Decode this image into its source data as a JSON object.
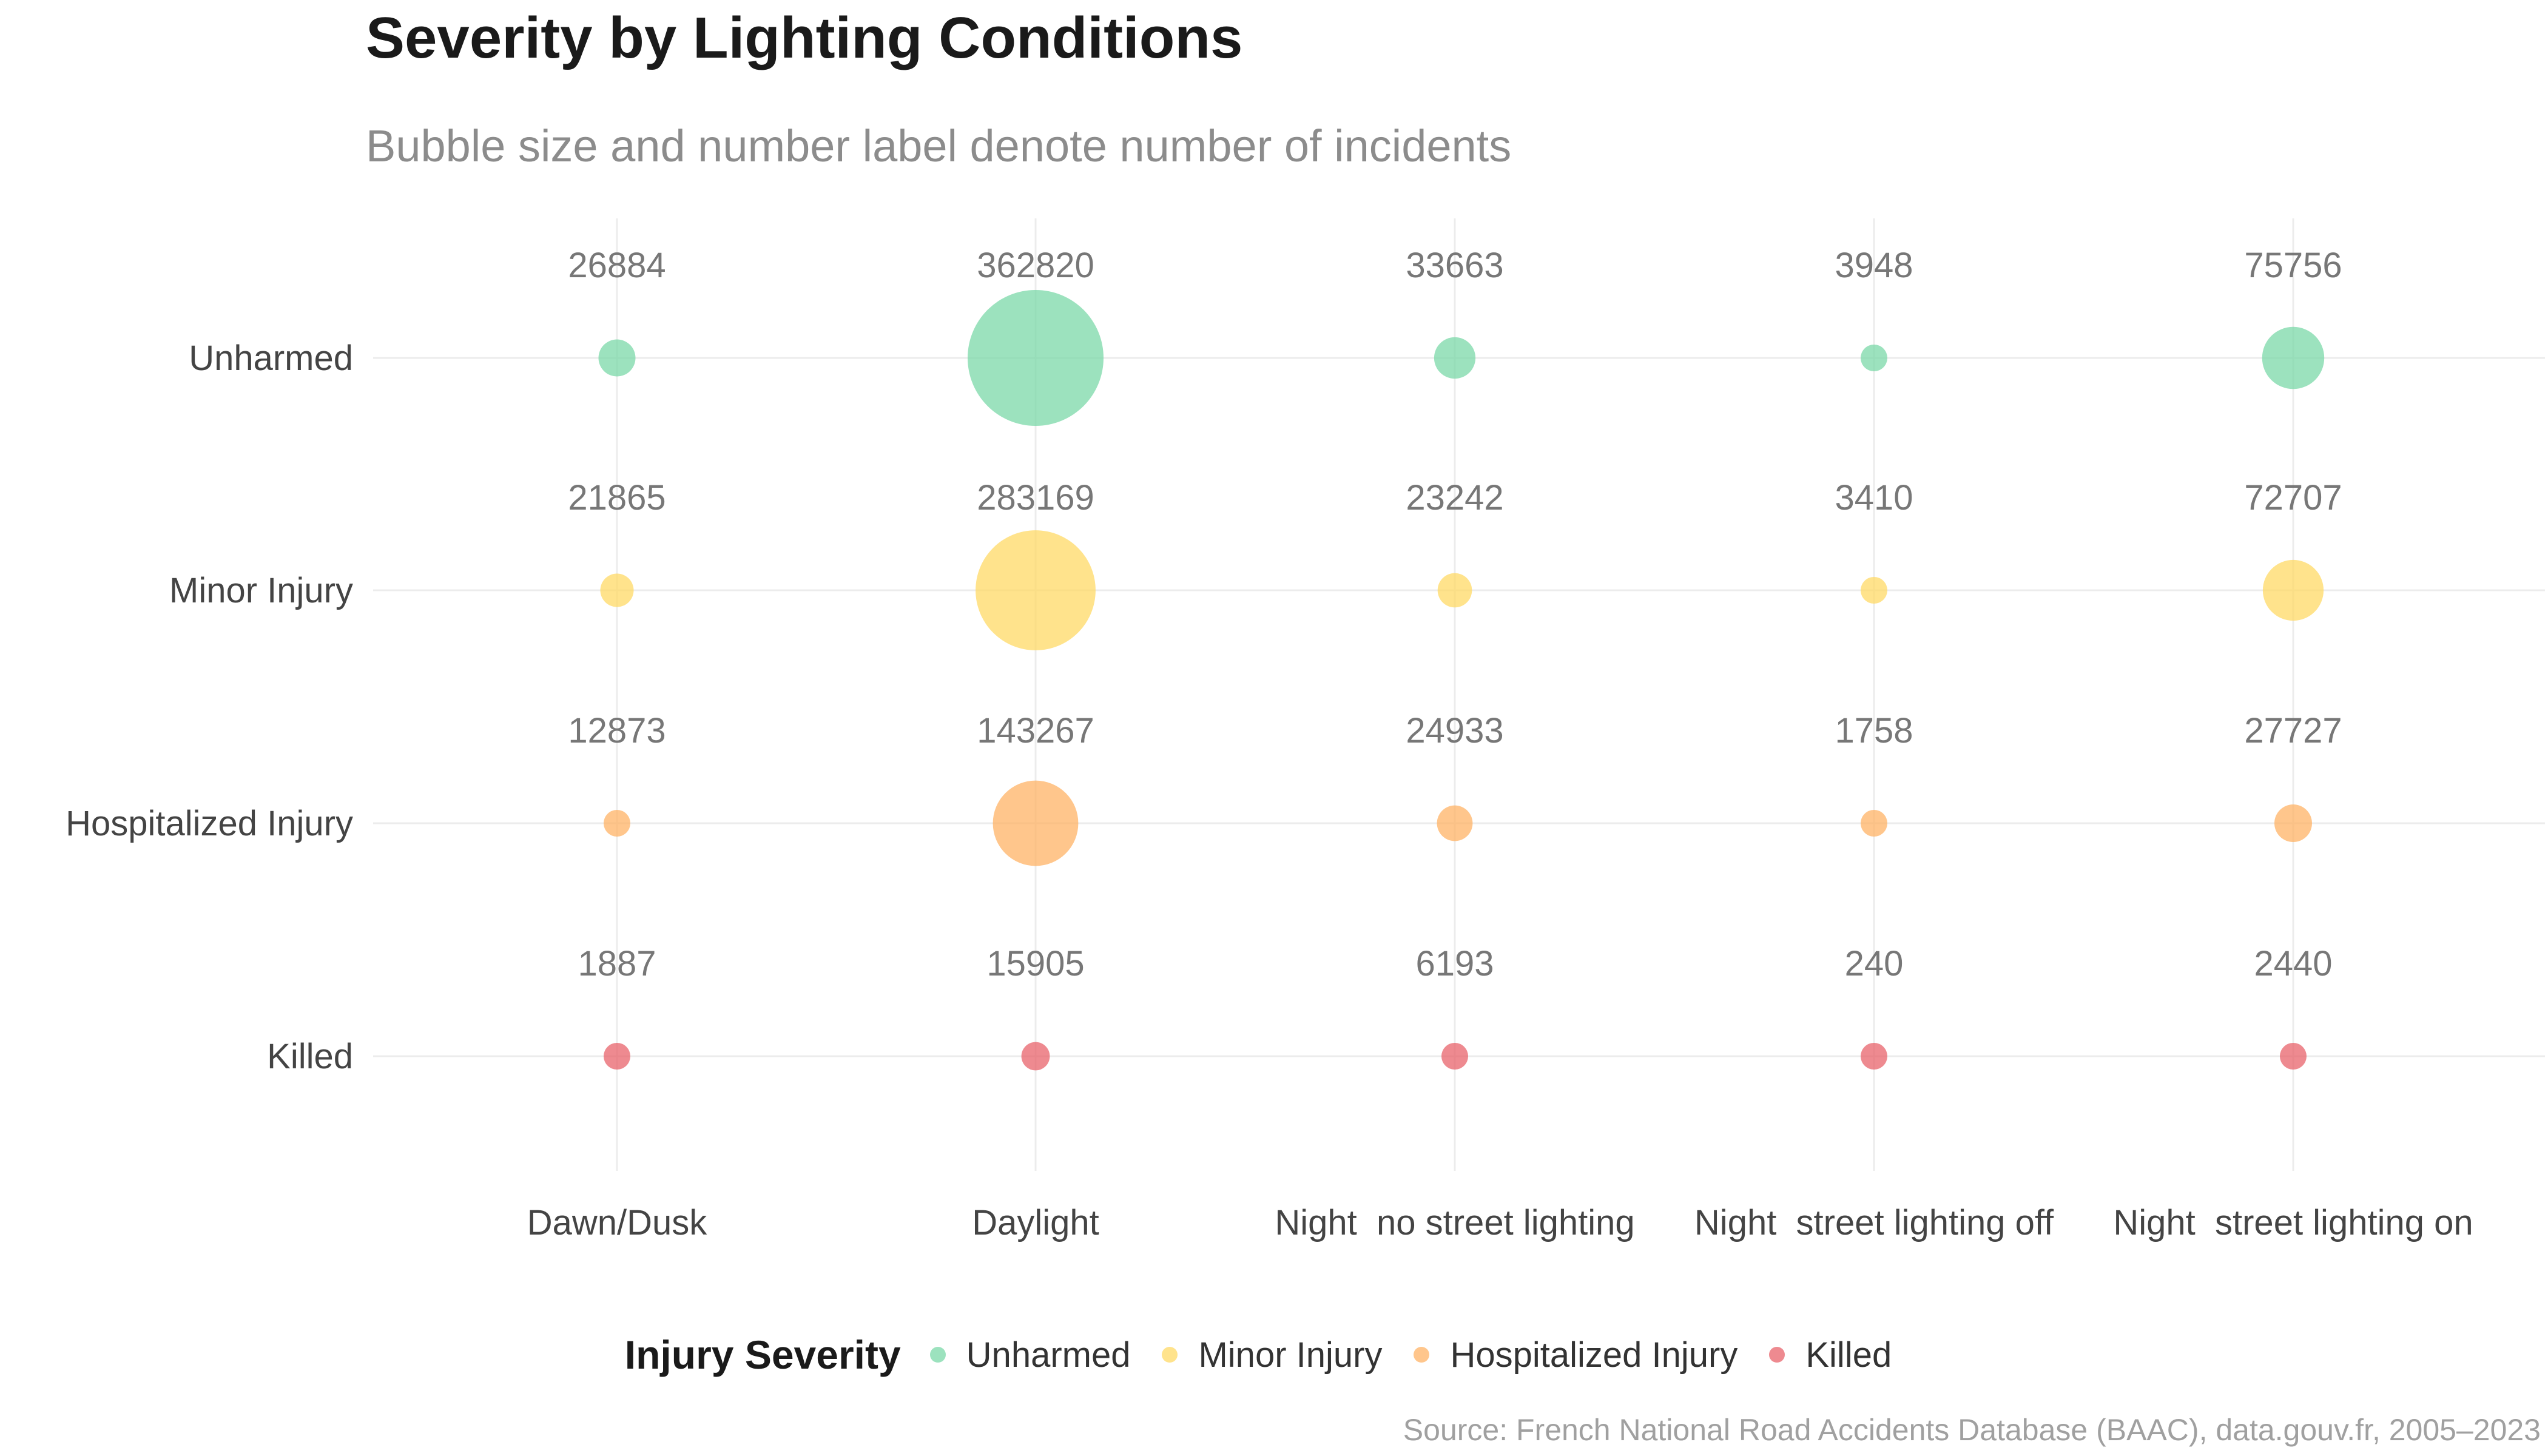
{
  "chart_data": {
    "type": "scatter",
    "title": "Severity by Lighting Conditions",
    "subtitle": "Bubble size and number label denote number of incidents",
    "source": "Source: French National Road Accidents Database (BAAC), data.gouv.fr, 2005–2023",
    "categories": [
      "Dawn/Dusk",
      "Daylight",
      "Night  no street lighting",
      "Night  street lighting off",
      "Night  street lighting on"
    ],
    "legend": {
      "title": "Injury Severity",
      "placement": "bottom"
    },
    "grid": true,
    "series": [
      {
        "name": "Unharmed",
        "color": "#7bd8a8",
        "values": [
          26884,
          362820,
          33663,
          3948,
          75756
        ]
      },
      {
        "name": "Minor Injury",
        "color": "#ffd966",
        "values": [
          21865,
          283169,
          23242,
          3410,
          72707
        ]
      },
      {
        "name": "Hospitalized Injury",
        "color": "#ffb366",
        "values": [
          12873,
          143267,
          24933,
          1758,
          27727
        ]
      },
      {
        "name": "Killed",
        "color": "#e8636b",
        "values": [
          1887,
          15905,
          6193,
          240,
          2440
        ]
      }
    ]
  }
}
